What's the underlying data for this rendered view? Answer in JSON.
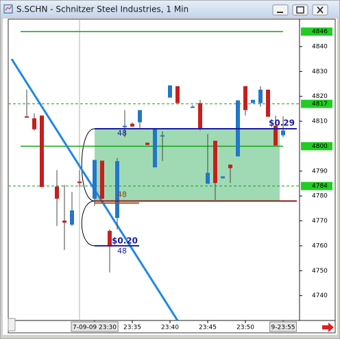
{
  "chart_data": {
    "type": "candlestick",
    "title": "S.SCHN - Schnitzer Steel Industries, 1 Min",
    "x": [
      "23:21",
      "23:22",
      "23:23",
      "23:24",
      "23:25",
      "23:26",
      "23:27",
      "23:28",
      "23:29",
      "23:30",
      "23:31",
      "23:32",
      "23:33",
      "23:34",
      "23:35",
      "23:36",
      "23:37",
      "23:38",
      "23:39",
      "23:40",
      "23:41",
      "23:42",
      "23:43",
      "23:44",
      "23:45",
      "23:46",
      "23:47",
      "23:48",
      "23:49",
      "23:50",
      "23:51",
      "23:52",
      "23:53",
      "23:54",
      "23:55"
    ],
    "open": [
      4812,
      4811.2,
      4812.3,
      null,
      4783.8,
      4770.1,
      4768.5,
      4785.8,
      null,
      4778.9,
      4794.2,
      4766,
      4771.2,
      4808,
      4809,
      4809.6,
      4801.4,
      4791.5,
      4804.4,
      4819.5,
      4824.1,
      null,
      4815.9,
      4817.3,
      4784.9,
      4802.2,
      4787.1,
      4792.6,
      4795.9,
      4824.1,
      4817.3,
      4817.3,
      4822.7,
      4808.2,
      4804.4
    ],
    "high": [
      4822.7,
      4813.2,
      4812.3,
      null,
      4790.4,
      4784.4,
      4781.6,
      4790.4,
      null,
      4794.5,
      4794.2,
      4766.6,
      4795.3,
      4814.5,
      4809.6,
      4814.5,
      4801.4,
      4807.1,
      4806,
      4824.4,
      4824.1,
      null,
      4816.5,
      4818.6,
      4804.9,
      4802.2,
      4787.9,
      4792.6,
      4818.4,
      4824.1,
      4818.6,
      4824.1,
      4822.7,
      4812.3,
      4812
    ],
    "low": [
      4811.8,
      4806.3,
      4783.6,
      null,
      4767.9,
      4758.4,
      4767.9,
      4783.6,
      null,
      4776,
      4778.9,
      4749.3,
      4766.6,
      4803.6,
      4807.9,
      4806.8,
      4800.5,
      4791.5,
      4794,
      4819.5,
      4817.3,
      null,
      4815.5,
      4806.3,
      4784.9,
      4778.4,
      4787.1,
      4785.2,
      4795.9,
      4812.3,
      4817.3,
      4815.9,
      4811.8,
      4800.3,
      4803.6
    ],
    "close": [
      4811.5,
      4806.8,
      4783.6,
      null,
      4778.9,
      4769.3,
      4774.2,
      4785.2,
      null,
      4794.5,
      4778.9,
      4759.7,
      4794,
      4808.2,
      4807.9,
      4814.5,
      4800.5,
      4807.1,
      4804.4,
      4824.4,
      4817.3,
      null,
      4815.9,
      4806.8,
      4789.3,
      4785.2,
      4787.9,
      4791.2,
      4818.4,
      4814.5,
      4818.6,
      4822.7,
      4811.8,
      4800.3,
      4806.3
    ],
    "up_color": "#2277c8",
    "down_color": "#c81e1e",
    "ylim": [
      4730,
      4851
    ],
    "yticks": [
      4740,
      4750,
      4760,
      4770,
      4780,
      4790,
      4810,
      4820,
      4830,
      4840
    ],
    "xticks": [
      {
        "value": "23:30",
        "label": "7-09-09 23:30"
      },
      "23:35",
      "23:40",
      "23:45",
      "23:50",
      {
        "value": "23:55",
        "label": "9-23:55"
      }
    ],
    "levels": [
      {
        "value": 4846,
        "style": "solid"
      },
      {
        "value": 4817,
        "style": "dashed"
      },
      {
        "value": 4800,
        "style": "solid"
      },
      {
        "value": 4784,
        "style": "dashed"
      }
    ],
    "level_color": "#14a014",
    "trendline": {
      "x": [
        "23:19",
        "23:41"
      ],
      "y": [
        4835,
        4730
      ],
      "color": "#1e88e5"
    },
    "trade": {
      "start": "23:30",
      "end": "23:54",
      "target": 4807,
      "stop": 4778,
      "fill": "#8fd4a8",
      "target_color": "#1a1aa0",
      "stop_color": "#8b1a1a",
      "target_label": "$0.29",
      "size_labels": [
        "48",
        "48",
        "48"
      ],
      "stop_order": 4760,
      "stop_order_label": "$0.20"
    }
  }
}
